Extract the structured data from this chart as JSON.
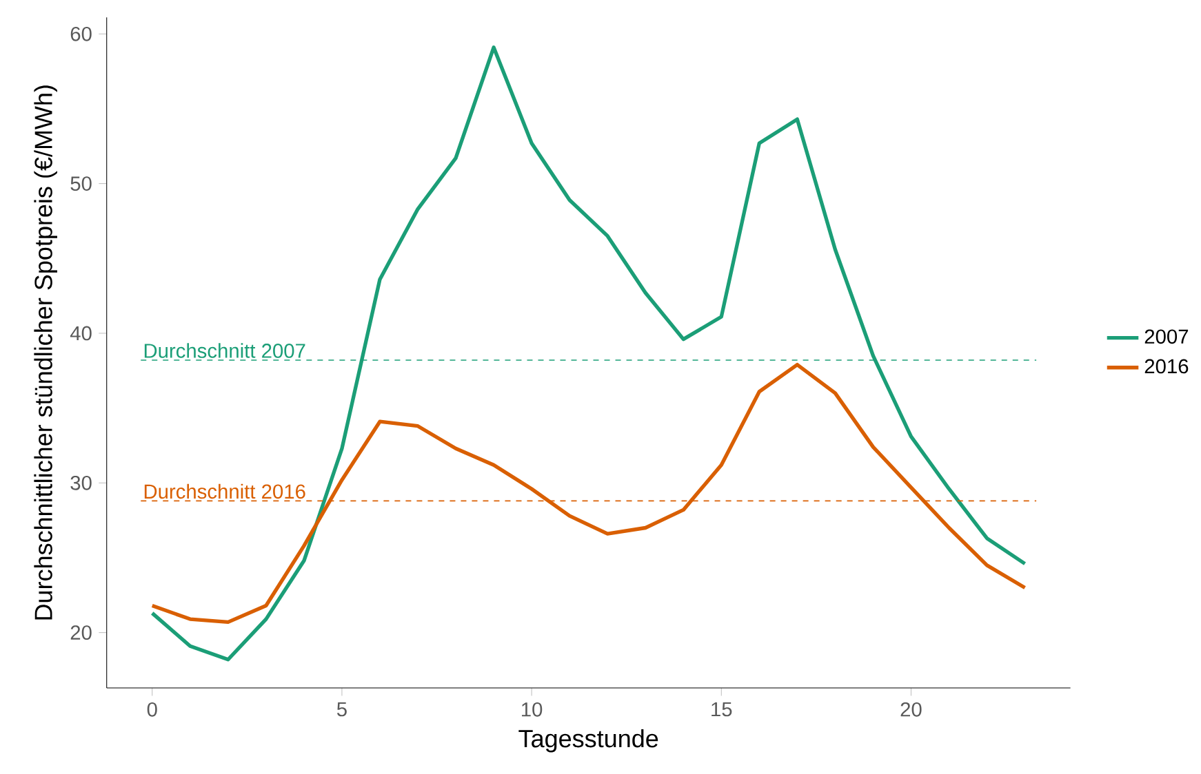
{
  "chart_data": {
    "type": "line",
    "xlabel": "Tagesstunde",
    "ylabel": "Durchschnittlicher stündlicher Spotpreis (€/MWh)",
    "x": [
      0,
      1,
      2,
      3,
      4,
      5,
      6,
      7,
      8,
      9,
      10,
      11,
      12,
      13,
      14,
      15,
      16,
      17,
      18,
      19,
      20,
      21,
      22,
      23
    ],
    "series": [
      {
        "name": "2007",
        "color": "#1b9e77",
        "values": [
          21.3,
          19.1,
          18.2,
          20.9,
          24.8,
          32.3,
          43.6,
          48.3,
          51.7,
          59.1,
          52.7,
          48.9,
          46.5,
          42.7,
          39.6,
          41.1,
          52.7,
          54.3,
          45.6,
          38.5,
          33.1,
          29.6,
          26.3,
          24.6
        ]
      },
      {
        "name": "2016",
        "color": "#d95f02",
        "values": [
          21.8,
          20.9,
          20.7,
          21.8,
          25.8,
          30.2,
          34.1,
          33.8,
          32.3,
          31.2,
          29.6,
          27.8,
          26.6,
          27.0,
          28.2,
          31.2,
          36.1,
          37.9,
          36.0,
          32.4,
          29.7,
          27.0,
          24.5,
          23.0
        ]
      }
    ],
    "xlim": [
      -1.2,
      24.2
    ],
    "ylim": [
      16.3,
      61.1
    ],
    "xticks": [
      0,
      5,
      10,
      15,
      20
    ],
    "yticks": [
      20,
      30,
      40,
      50,
      60
    ],
    "ref_lines": [
      {
        "axis": "y",
        "value": 38.2,
        "label": "Durchschnitt 2007",
        "color": "#1b9e77",
        "line_style": "dashed"
      },
      {
        "axis": "y",
        "value": 28.8,
        "label": "Durchschnitt 2016",
        "color": "#d95f02",
        "line_style": "dashed"
      }
    ],
    "legend": "right",
    "grid": false,
    "marker": "none",
    "line_style": "solid"
  }
}
